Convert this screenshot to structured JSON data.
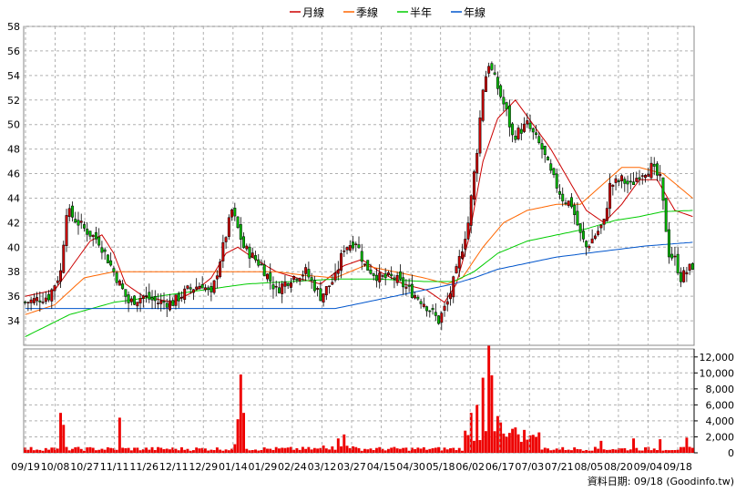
{
  "legend": {
    "items": [
      {
        "label": "月線",
        "color": "#cc0000"
      },
      {
        "label": "季線",
        "color": "#ff6600"
      },
      {
        "label": "半年",
        "color": "#00cc00"
      },
      {
        "label": "年線",
        "color": "#0055cc"
      }
    ]
  },
  "footer": {
    "text": "資料日期: 09/18  (Goodinfo.tw)"
  },
  "chart_data": [
    {
      "type": "candlestick",
      "ylim": [
        32,
        58
      ],
      "yticks": [
        34,
        36,
        38,
        40,
        42,
        44,
        46,
        48,
        50,
        52,
        54,
        56,
        58
      ],
      "grid": true,
      "xticks": [
        "09/19",
        "10/08",
        "10/27",
        "11/11",
        "11/26",
        "12/11",
        "12/29",
        "01/14",
        "01/29",
        "02/24",
        "03/12",
        "03/27",
        "04/15",
        "04/30",
        "05/18",
        "06/02",
        "06/17",
        "07/03",
        "07/21",
        "08/05",
        "08/20",
        "09/04",
        "09/18"
      ],
      "close_anchors": [
        [
          0,
          35.5
        ],
        [
          8,
          36
        ],
        [
          12,
          38
        ],
        [
          14,
          43
        ],
        [
          20,
          41.5
        ],
        [
          25,
          40.5
        ],
        [
          30,
          38
        ],
        [
          35,
          35.5
        ],
        [
          40,
          36
        ],
        [
          45,
          35.5
        ],
        [
          50,
          35.5
        ],
        [
          55,
          36.5
        ],
        [
          60,
          37
        ],
        [
          63,
          36
        ],
        [
          66,
          39
        ],
        [
          70,
          43
        ],
        [
          74,
          40
        ],
        [
          80,
          38.5
        ],
        [
          85,
          36.5
        ],
        [
          90,
          37.5
        ],
        [
          95,
          38
        ],
        [
          100,
          36
        ],
        [
          105,
          37.5
        ],
        [
          108,
          40
        ],
        [
          112,
          40.5
        ],
        [
          115,
          38.5
        ],
        [
          120,
          37.5
        ],
        [
          125,
          37.5
        ],
        [
          130,
          36.5
        ],
        [
          135,
          35.5
        ],
        [
          140,
          34
        ],
        [
          143,
          35.5
        ],
        [
          146,
          38
        ],
        [
          150,
          42
        ],
        [
          153,
          48
        ],
        [
          155,
          53
        ],
        [
          157,
          55
        ],
        [
          160,
          53
        ],
        [
          163,
          51
        ],
        [
          165,
          49
        ],
        [
          170,
          50
        ],
        [
          175,
          48
        ],
        [
          178,
          46
        ],
        [
          182,
          44
        ],
        [
          185,
          43.5
        ],
        [
          188,
          41
        ],
        [
          190,
          40
        ],
        [
          193,
          41
        ],
        [
          196,
          42
        ],
        [
          198,
          45
        ],
        [
          202,
          45.5
        ],
        [
          205,
          45
        ],
        [
          208,
          46
        ],
        [
          212,
          46.5
        ],
        [
          215,
          45.5
        ],
        [
          218,
          39.5
        ],
        [
          220,
          39
        ],
        [
          222,
          37.5
        ],
        [
          226,
          38.5
        ]
      ],
      "series": [
        {
          "name": "月線",
          "color": "#cc0000",
          "points": [
            [
              0,
              36
            ],
            [
              10,
              36.5
            ],
            [
              16,
              38.5
            ],
            [
              22,
              40.5
            ],
            [
              26,
              41
            ],
            [
              30,
              39.5
            ],
            [
              34,
              37
            ],
            [
              40,
              36
            ],
            [
              50,
              35.5
            ],
            [
              58,
              36.5
            ],
            [
              63,
              37.5
            ],
            [
              68,
              39.5
            ],
            [
              72,
              40
            ],
            [
              78,
              39
            ],
            [
              85,
              38
            ],
            [
              92,
              37.5
            ],
            [
              100,
              37
            ],
            [
              108,
              38.5
            ],
            [
              114,
              39
            ],
            [
              120,
              38
            ],
            [
              128,
              37
            ],
            [
              136,
              36.5
            ],
            [
              142,
              35.5
            ],
            [
              146,
              37
            ],
            [
              150,
              40.5
            ],
            [
              155,
              47
            ],
            [
              160,
              50.5
            ],
            [
              166,
              52
            ],
            [
              172,
              50
            ],
            [
              178,
              48
            ],
            [
              184,
              45.5
            ],
            [
              190,
              43
            ],
            [
              196,
              42
            ],
            [
              202,
              43.5
            ],
            [
              208,
              45.5
            ],
            [
              214,
              45.5
            ],
            [
              220,
              43
            ],
            [
              226,
              42.5
            ]
          ]
        },
        {
          "name": "季線",
          "color": "#ff6600",
          "points": [
            [
              0,
              34.5
            ],
            [
              10,
              35.3
            ],
            [
              20,
              37.5
            ],
            [
              30,
              38
            ],
            [
              40,
              38
            ],
            [
              55,
              38
            ],
            [
              65,
              38
            ],
            [
              75,
              38
            ],
            [
              85,
              38
            ],
            [
              95,
              37.7
            ],
            [
              105,
              37.5
            ],
            [
              115,
              38.5
            ],
            [
              125,
              38
            ],
            [
              135,
              37.5
            ],
            [
              143,
              37
            ],
            [
              148,
              37.5
            ],
            [
              155,
              40
            ],
            [
              162,
              42
            ],
            [
              170,
              43
            ],
            [
              180,
              43.5
            ],
            [
              188,
              43.5
            ],
            [
              195,
              45
            ],
            [
              202,
              46.5
            ],
            [
              208,
              46.5
            ],
            [
              216,
              46
            ],
            [
              226,
              44
            ]
          ]
        },
        {
          "name": "半年",
          "color": "#00cc00",
          "points": [
            [
              0,
              32.7
            ],
            [
              15,
              34.5
            ],
            [
              30,
              35.5
            ],
            [
              45,
              36
            ],
            [
              60,
              36.5
            ],
            [
              75,
              37
            ],
            [
              90,
              37.2
            ],
            [
              105,
              37.4
            ],
            [
              120,
              37.4
            ],
            [
              135,
              37.2
            ],
            [
              145,
              37.2
            ],
            [
              152,
              38
            ],
            [
              160,
              39.5
            ],
            [
              170,
              40.5
            ],
            [
              180,
              41
            ],
            [
              190,
              41.5
            ],
            [
              200,
              42.2
            ],
            [
              208,
              42.5
            ],
            [
              216,
              42.9
            ],
            [
              226,
              43
            ]
          ]
        },
        {
          "name": "年線",
          "color": "#0055cc",
          "points": [
            [
              0,
              35
            ],
            [
              30,
              35
            ],
            [
              60,
              35
            ],
            [
              90,
              35
            ],
            [
              105,
              35
            ],
            [
              115,
              35.5
            ],
            [
              125,
              36
            ],
            [
              135,
              36.5
            ],
            [
              145,
              37
            ],
            [
              152,
              37.5
            ],
            [
              160,
              38.2
            ],
            [
              170,
              38.7
            ],
            [
              180,
              39.2
            ],
            [
              190,
              39.5
            ],
            [
              200,
              39.8
            ],
            [
              210,
              40.1
            ],
            [
              226,
              40.4
            ]
          ]
        }
      ]
    },
    {
      "type": "bar",
      "ylabel": "",
      "ylim": [
        0,
        13000
      ],
      "yticks": [
        "0",
        "2,000",
        "4,000",
        "6,000",
        "8,000",
        "10,000",
        "12,000"
      ],
      "grid": true,
      "spikes": [
        [
          12,
          5000
        ],
        [
          13,
          3500
        ],
        [
          32,
          4400
        ],
        [
          73,
          9800
        ],
        [
          72,
          4200
        ],
        [
          74,
          5000
        ],
        [
          106,
          1800
        ],
        [
          108,
          2300
        ],
        [
          151,
          5000
        ],
        [
          153,
          6000
        ],
        [
          155,
          9400
        ],
        [
          157,
          13400
        ],
        [
          158,
          9700
        ],
        [
          160,
          4600
        ],
        [
          161,
          3800
        ],
        [
          163,
          2000
        ],
        [
          173,
          2000
        ],
        [
          195,
          1500
        ],
        [
          206,
          1800
        ],
        [
          215,
          1700
        ],
        [
          224,
          1900
        ]
      ]
    }
  ]
}
